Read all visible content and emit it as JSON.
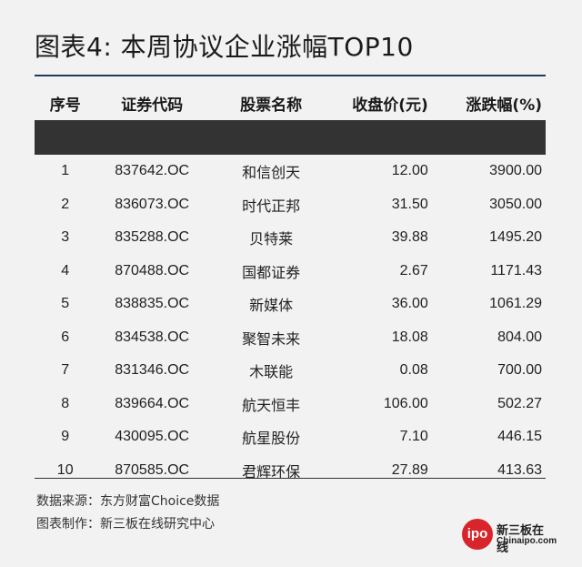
{
  "title": "图表4: 本周协议企业涨幅TOP10",
  "table": {
    "headers": [
      "序号",
      "证券代码",
      "股票名称",
      "收盘价(元)",
      "涨跌幅(%)"
    ],
    "rows": [
      [
        "1",
        "837642.OC",
        "和信创天",
        "12.00",
        "3900.00"
      ],
      [
        "2",
        "836073.OC",
        "时代正邦",
        "31.50",
        "3050.00"
      ],
      [
        "3",
        "835288.OC",
        "贝特莱",
        "39.88",
        "1495.20"
      ],
      [
        "4",
        "870488.OC",
        "国都证券",
        "2.67",
        "1171.43"
      ],
      [
        "5",
        "838835.OC",
        "新媒体",
        "36.00",
        "1061.29"
      ],
      [
        "6",
        "834538.OC",
        "聚智未来",
        "18.08",
        "804.00"
      ],
      [
        "7",
        "831346.OC",
        "木联能",
        "0.08",
        "700.00"
      ],
      [
        "8",
        "839664.OC",
        "航天恒丰",
        "106.00",
        "502.27"
      ],
      [
        "9",
        "430095.OC",
        "航星股份",
        "7.10",
        "446.15"
      ],
      [
        "10",
        "870585.OC",
        "君辉环保",
        "27.89",
        "413.63"
      ]
    ]
  },
  "footer": {
    "source": "数据来源：东方财富Choice数据",
    "maker": "图表制作：新三板在线研究中心"
  },
  "logo": {
    "badge": "ipo",
    "name_cn": "新三板在线",
    "name_en": "Chinaipo.com",
    "brand_color": "#d8242b"
  },
  "colors": {
    "top_rule": "#1f3a5f",
    "background": "#f2f2f2"
  }
}
